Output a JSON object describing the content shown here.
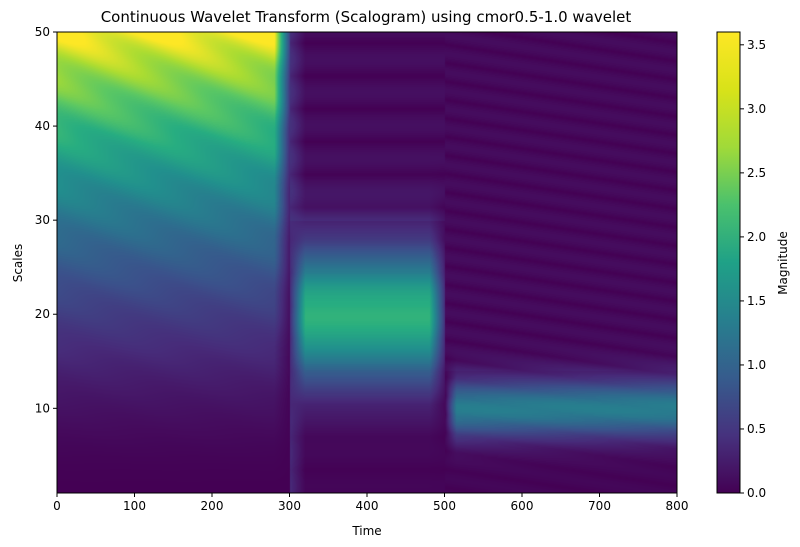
{
  "chart_data": {
    "type": "heatmap",
    "title": "Continuous Wavelet Transform (Scalogram) using cmor0.5-1.0 wavelet",
    "xlabel": "Time",
    "ylabel": "Scales",
    "colorbar_label": "Magnitude",
    "colormap": "viridis",
    "xlim": [
      0,
      800
    ],
    "ylim": [
      1,
      50
    ],
    "xticks": [
      0,
      100,
      200,
      300,
      400,
      500,
      600,
      700,
      800
    ],
    "yticks": [
      10,
      20,
      30,
      40,
      50
    ],
    "colorbar_range": [
      0,
      3.6
    ],
    "colorbar_ticks": [
      0.0,
      0.5,
      1.0,
      1.5,
      2.0,
      2.5,
      3.0,
      3.5
    ],
    "grid": false,
    "segments": [
      {
        "time_range": [
          0,
          300
        ],
        "dominant_scale": 50,
        "peak_magnitude": 3.6
      },
      {
        "time_range": [
          300,
          500
        ],
        "dominant_scale": 20,
        "peak_magnitude": 2.3
      },
      {
        "time_range": [
          500,
          800
        ],
        "dominant_scale": 10,
        "peak_magnitude": 1.5
      }
    ]
  }
}
